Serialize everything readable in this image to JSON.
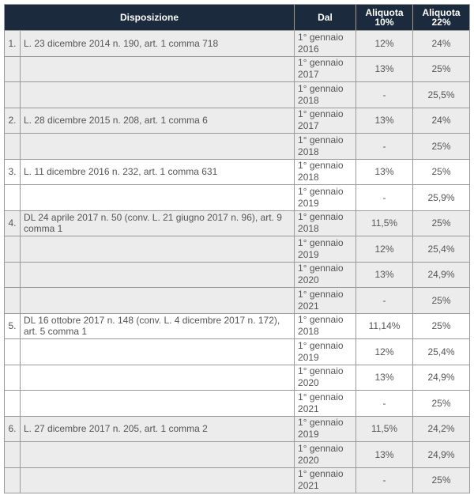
{
  "headers": {
    "disposizione": "Disposizione",
    "dal": "Dal",
    "aliquota10": "Aliquota 10%",
    "aliquota22": "Aliquota 22%"
  },
  "rows": [
    {
      "num": "1.",
      "disposizione": "L. 23 dicembre 2014 n. 190, art. 1 comma 718",
      "dal": "1° gennaio 2016",
      "a10": "12%",
      "a22": "24%"
    },
    {
      "num": "",
      "disposizione": "",
      "dal": "1° gennaio 2017",
      "a10": "13%",
      "a22": "25%"
    },
    {
      "num": "",
      "disposizione": "",
      "dal": "1° gennaio 2018",
      "a10": "-",
      "a22": "25,5%"
    },
    {
      "num": "2.",
      "disposizione": "L. 28 dicembre 2015 n. 208, art. 1 comma 6",
      "dal": "1° gennaio 2017",
      "a10": "13%",
      "a22": "24%"
    },
    {
      "num": "",
      "disposizione": "",
      "dal": "1° gennaio 2018",
      "a10": "-",
      "a22": "25%"
    },
    {
      "num": "3.",
      "disposizione": "L. 11 dicembre 2016 n. 232, art. 1 comma 631",
      "dal": "1° gennaio 2018",
      "a10": "13%",
      "a22": "25%"
    },
    {
      "num": "",
      "disposizione": "",
      "dal": "1° gennaio 2019",
      "a10": "-",
      "a22": "25,9%"
    },
    {
      "num": "4.",
      "disposizione": "DL 24 aprile 2017 n. 50 (conv. L. 21 giugno 2017 n. 96), art. 9 comma 1",
      "dal": "1° gennaio 2018",
      "a10": "11,5%",
      "a22": "25%"
    },
    {
      "num": "",
      "disposizione": "",
      "dal": "1° gennaio 2019",
      "a10": "12%",
      "a22": "25,4%"
    },
    {
      "num": "",
      "disposizione": "",
      "dal": "1° gennaio 2020",
      "a10": "13%",
      "a22": "24,9%"
    },
    {
      "num": "",
      "disposizione": "",
      "dal": "1° gennaio 2021",
      "a10": "-",
      "a22": "25%"
    },
    {
      "num": "5.",
      "disposizione": "DL 16 ottobre 2017 n. 148 (conv. L. 4 dicembre 2017 n. 172), art. 5 comma 1",
      "dal": "1° gennaio 2018",
      "a10": "11,14%",
      "a22": "25%"
    },
    {
      "num": "",
      "disposizione": "",
      "dal": "1° gennaio 2019",
      "a10": "12%",
      "a22": "25,4%"
    },
    {
      "num": "",
      "disposizione": "",
      "dal": "1° gennaio 2020",
      "a10": "13%",
      "a22": "24,9%"
    },
    {
      "num": "",
      "disposizione": "",
      "dal": "1° gennaio 2021",
      "a10": "-",
      "a22": "25%"
    },
    {
      "num": "6.",
      "disposizione": "L. 27 dicembre 2017 n. 205, art. 1 comma 2",
      "dal": "1° gennaio 2019",
      "a10": "11,5%",
      "a22": "24,2%"
    },
    {
      "num": "",
      "disposizione": "",
      "dal": "1° gennaio 2020",
      "a10": "13%",
      "a22": "24,9%"
    },
    {
      "num": "",
      "disposizione": "",
      "dal": "1° gennaio 2021",
      "a10": "-",
      "a22": "25%"
    }
  ]
}
